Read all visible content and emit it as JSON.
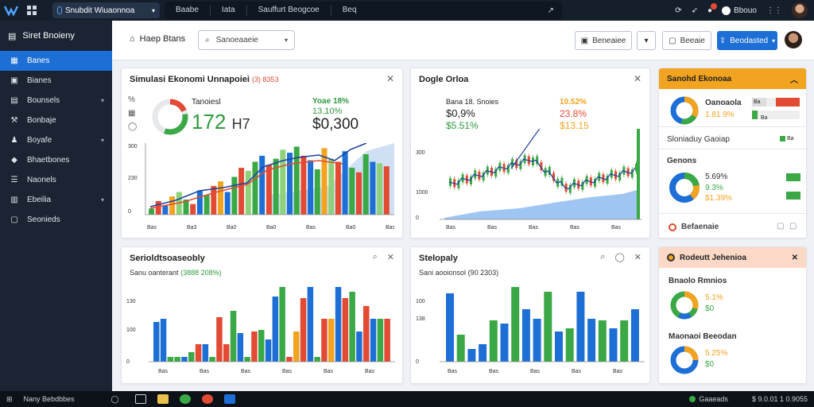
{
  "topbar": {
    "app_name": "Snubdit Wiuaonnoa",
    "tabs": [
      "Baabe",
      "Iata",
      "Sauffurt Beogcoe",
      "Beq"
    ],
    "user_label": "Bbouo"
  },
  "sidebar": {
    "title": "Siret Bnoieny",
    "items": [
      {
        "label": "Banes",
        "icon": "grid-icon",
        "active": true,
        "chevron": false
      },
      {
        "label": "Bianes",
        "icon": "image-icon",
        "active": false,
        "chevron": false
      },
      {
        "label": "Bounsels",
        "icon": "table-icon",
        "active": false,
        "chevron": true
      },
      {
        "label": "Bonbaje",
        "icon": "wrench-icon",
        "active": false,
        "chevron": false
      },
      {
        "label": "Boyafe",
        "icon": "people-icon",
        "active": false,
        "chevron": true
      },
      {
        "label": "Bhaetbones",
        "icon": "tag-icon",
        "active": false,
        "chevron": false
      },
      {
        "label": "Naonels",
        "icon": "list-icon",
        "active": false,
        "chevron": false
      },
      {
        "label": "Ebeilia",
        "icon": "doc-icon",
        "active": false,
        "chevron": true
      },
      {
        "label": "Seonieds",
        "icon": "box-icon",
        "active": false,
        "chevron": false
      }
    ]
  },
  "header": {
    "title": "Haep Btans",
    "search_placeholder": "Sanoeaaeie",
    "btn1": "Beneaiee",
    "btn2": "Beeaie",
    "btn_primary": "Beodasted"
  },
  "panel1": {
    "title": "Simulasi Ekonomi Unnapoiei",
    "title_badge": "(3) 8353",
    "gauge_label": "Tanoiesl",
    "big_value": "172",
    "big_unit": "H7",
    "stat_top": "Yoae 18%",
    "stat_mid": "13.10%",
    "stat_big": "$0,300",
    "y_ticks": [
      "300",
      "230",
      "0"
    ],
    "x_ticks": [
      "Bas",
      "Ba3",
      "Ba0",
      "Ba0",
      "Bas",
      "Ba0",
      "Bas"
    ]
  },
  "panel2": {
    "title": "Dogle Orloa",
    "stat1": "Bana 18. Snoies",
    "stat2": "$0,9%",
    "stat3": "$5.51%",
    "stat4": "10.52%",
    "stat5": "23.8%",
    "stat6": "$13.15",
    "y_ticks": [
      "300",
      "1000",
      "0"
    ],
    "x_ticks": [
      "Bas",
      "Bas",
      "Bas",
      "Bas",
      "Bas",
      "Bas"
    ]
  },
  "panel3": {
    "title": "Serioldtsoaseobly",
    "subtitle": "Sanu oanterant",
    "subtitle_badge": "(3888 208%)",
    "y_ticks": [
      "130",
      "100",
      "0"
    ],
    "x_ticks": [
      "Bas",
      "Bas",
      "Bas",
      "Bas",
      "Bas",
      "Bas"
    ]
  },
  "panel4": {
    "title": "Stelopaly",
    "subtitle": "Sani aooionsol",
    "subtitle_badge": "(90 2303)",
    "y_ticks": [
      "100",
      "138",
      "0"
    ],
    "x_ticks": [
      "Bas",
      "Bas",
      "Bas",
      "Bas",
      "Bas"
    ]
  },
  "panel5": {
    "title": "Sanohd Ekonoaa",
    "donut_label": "Oanoaola",
    "donut_value": "1.81.9%",
    "bar_tag1": "Ba",
    "bar_tag2": "Ba",
    "row_label": "Sloniaduy Gaoiap",
    "row_value": "Ba",
    "sub_label": "Genons",
    "pct1": "5.69%",
    "pct2": "9.3%",
    "pct3": "$1.39%",
    "footer_label": "Befaenaie"
  },
  "panel6": {
    "title": "Rodeutt Jehenioa",
    "s1_label": "Bnaolo Rmnios",
    "s1_pct": "5.1%",
    "s1_val": "$0",
    "s2_label": "Maonaoi Beeodan",
    "s2_pct": "5.25%",
    "s2_val": "$0"
  },
  "taskbar": {
    "start_label": "Nany Bebdbbes",
    "status": "Gaaeads",
    "clock": "$ 9.0.01 1 0.9055"
  },
  "colors": {
    "accent": "#1d6fd6",
    "green": "#3aa845",
    "red": "#e24a33",
    "orange": "#f2a31f",
    "sidebar": "#1b2433",
    "topbar": "#151e2b"
  }
}
